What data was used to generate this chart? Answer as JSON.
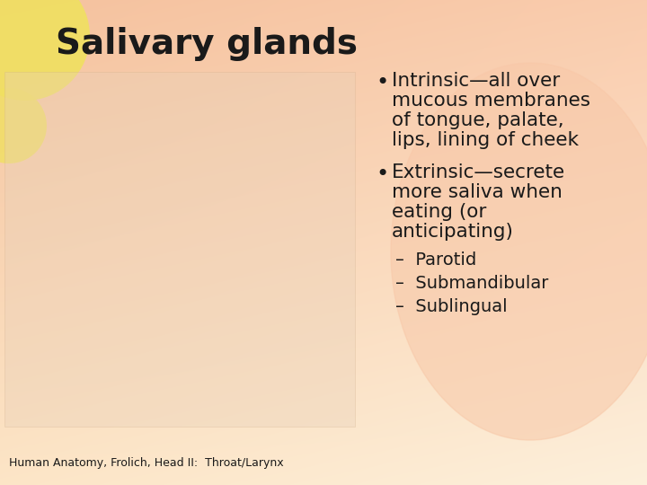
{
  "title": "Salivary glands",
  "title_fontsize": 28,
  "title_color": "#1a1a1a",
  "bullet1_line1": "Intrinsic—all over",
  "bullet1_line2": "mucous membranes",
  "bullet1_line3": "of tongue, palate,",
  "bullet1_line4": "lips, lining of cheek",
  "bullet2_line1": "Extrinsic—secrete",
  "bullet2_line2": "more saliva when",
  "bullet2_line3": "eating (or",
  "bullet2_line4": "anticipating)",
  "sub1": "Parotid",
  "sub2": "Submandibular",
  "sub3": "Sublingual",
  "footnote": "Human Anatomy, Frolich, Head II:  Throat/Larynx",
  "footnote_fontsize": 9,
  "bullet_fontsize": 15.5,
  "sub_fontsize": 14,
  "text_color": "#1a1a1a",
  "bg_grad_topleft": [
    0.96,
    0.76,
    0.62
  ],
  "bg_grad_topright": [
    0.98,
    0.8,
    0.68
  ],
  "bg_grad_bottomleft": [
    0.99,
    0.9,
    0.78
  ],
  "bg_grad_bottomright": [
    0.99,
    0.94,
    0.86
  ],
  "circle_color": "#f0e060",
  "oval_fill": [
    0.99,
    0.88,
    0.8
  ]
}
